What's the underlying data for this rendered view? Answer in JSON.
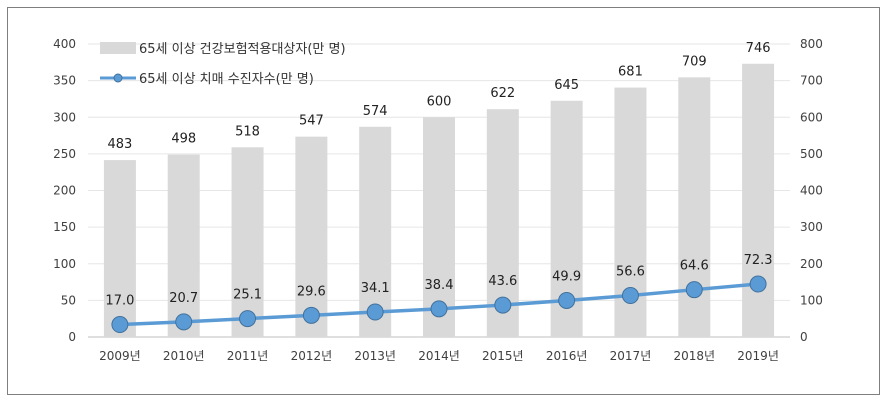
{
  "chart_data": {
    "type": "bar",
    "categories": [
      "2009년",
      "2010년",
      "2011년",
      "2012년",
      "2013년",
      "2014년",
      "2015년",
      "2016년",
      "2017년",
      "2018년",
      "2019년"
    ],
    "series": [
      {
        "name": "65세 이상 건강보험적용대상자(만 명)",
        "type": "bar",
        "axis": "right",
        "color": "#d9d9d9",
        "values": [
          483,
          498,
          518,
          547,
          574,
          600,
          622,
          645,
          681,
          709,
          746
        ],
        "labels": [
          "483",
          "498",
          "518",
          "547",
          "574",
          "600",
          "622",
          "645",
          "681",
          "709",
          "746"
        ]
      },
      {
        "name": "65세 이상 치매 수진자수(만 명)",
        "type": "line",
        "axis": "left",
        "color": "#5b9bd5",
        "marker_color": "#5b9bd5",
        "values": [
          17.0,
          20.7,
          25.1,
          29.6,
          34.1,
          38.4,
          43.6,
          49.9,
          56.6,
          64.6,
          72.3
        ],
        "labels": [
          "17.0",
          "20.7",
          "25.1",
          "29.6",
          "34.1",
          "38.4",
          "43.6",
          "49.9",
          "56.6",
          "64.6",
          "72.3"
        ]
      }
    ],
    "y_left": {
      "ylim": [
        0,
        400
      ],
      "ticks": [
        "0",
        "50",
        "100",
        "150",
        "200",
        "250",
        "300",
        "350",
        "400"
      ]
    },
    "y_right": {
      "ylim": [
        0,
        800
      ],
      "ticks": [
        "0",
        "100",
        "200",
        "300",
        "400",
        "500",
        "600",
        "700",
        "800"
      ]
    },
    "grid": true,
    "legend": "top-left"
  }
}
